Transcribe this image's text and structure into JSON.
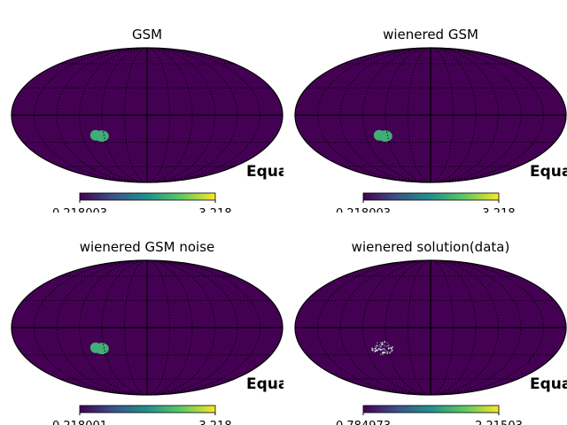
{
  "chart_data": [
    {
      "type": "heatmap",
      "projection": "mollweide",
      "title": "GSM",
      "coord_label": "Equatorial",
      "graticule": true,
      "colormap": "viridis",
      "colorbar": {
        "min": 0.218003,
        "max": 3.218,
        "min_label": "0.218003",
        "max_label": "3.218"
      },
      "background_value": 0.218003,
      "features": [
        {
          "kind": "patch",
          "value": 2.1,
          "lon_deg": -68,
          "lat_deg": -22,
          "radius_deg": 10
        }
      ]
    },
    {
      "type": "heatmap",
      "projection": "mollweide",
      "title": "wienered GSM",
      "coord_label": "Equatorial",
      "graticule": true,
      "colormap": "viridis",
      "colorbar": {
        "min": 0.218003,
        "max": 3.218,
        "min_label": "0.218003",
        "max_label": "3.218"
      },
      "background_value": 0.218003,
      "features": [
        {
          "kind": "patch",
          "value": 2.1,
          "lon_deg": -68,
          "lat_deg": -22,
          "radius_deg": 10
        }
      ]
    },
    {
      "type": "heatmap",
      "projection": "mollweide",
      "title": "wienered GSM noise",
      "coord_label": "Equatorial",
      "graticule": true,
      "colormap": "viridis",
      "colorbar": {
        "min": 0.218001,
        "max": 3.218,
        "min_label": "0.218001",
        "max_label": "3.218"
      },
      "background_value": 0.218001,
      "features": [
        {
          "kind": "patch",
          "value": 2.1,
          "lon_deg": -68,
          "lat_deg": -22,
          "radius_deg": 10
        }
      ]
    },
    {
      "type": "heatmap",
      "projection": "mollweide",
      "title": "wienered solution(data)",
      "coord_label": "Equatorial",
      "graticule": true,
      "colormap": "viridis",
      "colorbar": {
        "min": 0.784973,
        "max": 2.21503,
        "min_label": "0.784973",
        "max_label": "2.21503"
      },
      "background_value": 0.784973,
      "features": [
        {
          "kind": "noisy-patch",
          "value": 2.0,
          "lon_deg": -68,
          "lat_deg": -22,
          "radius_deg": 10
        }
      ]
    }
  ],
  "colors": {
    "viridis_low": "#440154",
    "viridis_mid": "#21918c",
    "viridis_high": "#fde725",
    "patch": "#35b779",
    "graticule": "#000000"
  }
}
